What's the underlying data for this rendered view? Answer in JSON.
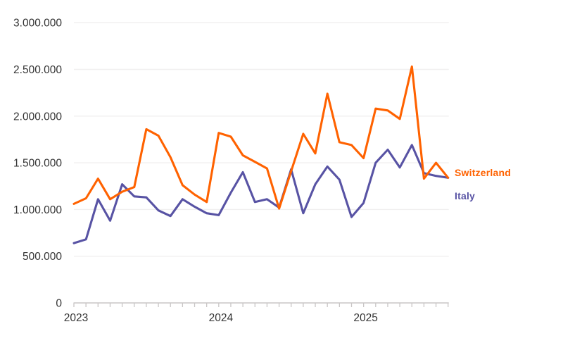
{
  "chart_data": {
    "type": "line",
    "title": "",
    "xlabel": "",
    "ylabel": "",
    "x_start": "Jan 2023",
    "x_end": "Aug 2025",
    "x_frequency": "monthly",
    "n_points": 32,
    "year_tick_labels": [
      "2023",
      "2024",
      "2025"
    ],
    "ylim": [
      0,
      3000000
    ],
    "ytick_step": 500000,
    "ytick_labels": [
      "0",
      "500.000",
      "1.000.000",
      "1.500.000",
      "2.000.000",
      "2.500.000",
      "3.000.000"
    ],
    "grid": "horizontal-light",
    "legend_position": "right-of-line-ends",
    "series": [
      {
        "name": "Italy",
        "color": "#5853a4",
        "values": [
          640000,
          680000,
          1110000,
          880000,
          1270000,
          1140000,
          1130000,
          990000,
          930000,
          1110000,
          1030000,
          960000,
          940000,
          1180000,
          1400000,
          1080000,
          1110000,
          1020000,
          1430000,
          960000,
          1270000,
          1460000,
          1320000,
          920000,
          1070000,
          1500000,
          1640000,
          1450000,
          1690000,
          1390000,
          1360000,
          1340000
        ]
      },
      {
        "name": "Switzerland",
        "color": "#ff6200",
        "values": [
          1060000,
          1120000,
          1330000,
          1110000,
          1190000,
          1240000,
          1860000,
          1790000,
          1560000,
          1260000,
          1160000,
          1080000,
          1820000,
          1780000,
          1580000,
          1510000,
          1440000,
          1010000,
          1410000,
          1810000,
          1600000,
          2240000,
          1720000,
          1690000,
          1550000,
          2080000,
          2060000,
          1970000,
          2530000,
          1330000,
          1500000,
          1340000
        ]
      }
    ],
    "style_colors": {
      "tick_label_text": "#333333",
      "gridline": "#f0efef",
      "axis_line": "#c9c6c6"
    }
  }
}
